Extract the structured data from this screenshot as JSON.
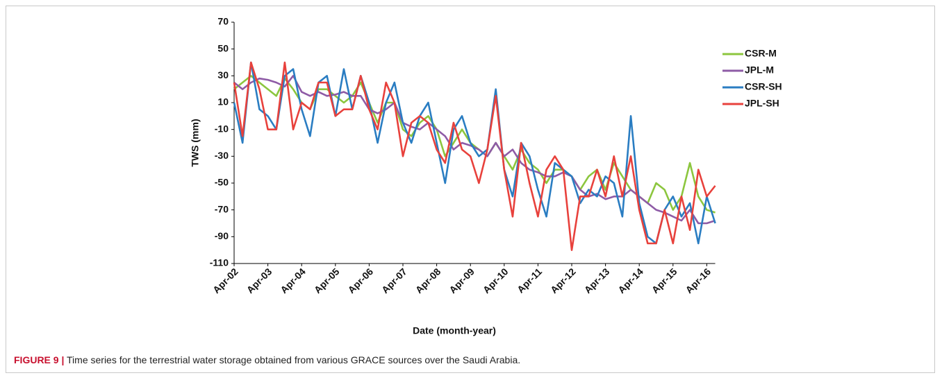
{
  "chart_data": {
    "type": "line",
    "y_label": "TWS (mm)",
    "x_label": "Date (month-year)",
    "categories": [
      "Apr-02",
      null,
      null,
      null,
      "Apr-03",
      null,
      null,
      null,
      "Apr-04",
      null,
      null,
      null,
      "Apr-05",
      null,
      null,
      null,
      "Apr-06",
      null,
      null,
      null,
      "Apr-07",
      null,
      null,
      null,
      "Apr-08",
      null,
      null,
      null,
      "Apr-09",
      null,
      null,
      null,
      "Apr-10",
      null,
      null,
      null,
      "Apr-11",
      null,
      null,
      null,
      "Apr-12",
      null,
      null,
      null,
      "Apr-13",
      null,
      null,
      null,
      "Apr-14",
      null,
      null,
      null,
      "Apr-15",
      null,
      null,
      null,
      "Apr-16",
      null
    ],
    "series": [
      {
        "name": "CSR-M",
        "color": "#8cc63e",
        "values": [
          20,
          25,
          30,
          25,
          20,
          15,
          28,
          20,
          10,
          5,
          20,
          20,
          15,
          10,
          15,
          25,
          10,
          -5,
          10,
          10,
          -10,
          -15,
          -5,
          0,
          -10,
          -30,
          -20,
          -10,
          -20,
          -25,
          -30,
          -20,
          -30,
          -40,
          -25,
          -35,
          -40,
          -50,
          -40,
          -40,
          -45,
          -55,
          -45,
          -40,
          -55,
          -35,
          -45,
          -55,
          -60,
          -65,
          -50,
          -55,
          -70,
          -60,
          -35,
          -60,
          -70,
          -72
        ]
      },
      {
        "name": "JPL-M",
        "color": "#8e5ba6",
        "values": [
          25,
          20,
          25,
          28,
          27,
          25,
          22,
          30,
          18,
          15,
          18,
          15,
          16,
          18,
          15,
          15,
          5,
          2,
          5,
          10,
          -5,
          -8,
          -10,
          -5,
          -10,
          -15,
          -25,
          -20,
          -22,
          -25,
          -30,
          -20,
          -30,
          -25,
          -35,
          -40,
          -42,
          -45,
          -45,
          -42,
          -45,
          -55,
          -60,
          -58,
          -62,
          -60,
          -60,
          -55,
          -60,
          -65,
          -70,
          -72,
          -75,
          -78,
          -70,
          -80,
          -80,
          -78
        ]
      },
      {
        "name": "CSR-SH",
        "color": "#2a7dc2",
        "values": [
          10,
          -20,
          40,
          5,
          0,
          -10,
          30,
          35,
          5,
          -15,
          25,
          30,
          0,
          35,
          5,
          30,
          10,
          -20,
          10,
          25,
          -5,
          -20,
          0,
          10,
          -20,
          -50,
          -10,
          0,
          -20,
          -30,
          -25,
          20,
          -40,
          -60,
          -20,
          -30,
          -55,
          -75,
          -35,
          -40,
          -45,
          -65,
          -55,
          -60,
          -45,
          -50,
          -75,
          0,
          -65,
          -90,
          -95,
          -70,
          -60,
          -75,
          -65,
          -95,
          -60,
          -80
        ]
      },
      {
        "name": "JPL-SH",
        "color": "#e8413c",
        "values": [
          25,
          -15,
          40,
          20,
          -10,
          -10,
          40,
          -10,
          10,
          5,
          25,
          25,
          0,
          5,
          5,
          30,
          5,
          -10,
          25,
          10,
          -30,
          -5,
          0,
          -5,
          -25,
          -35,
          -5,
          -25,
          -30,
          -50,
          -25,
          15,
          -40,
          -75,
          -20,
          -50,
          -75,
          -40,
          -30,
          -40,
          -100,
          -60,
          -60,
          -40,
          -60,
          -30,
          -60,
          -30,
          -70,
          -95,
          -95,
          -70,
          -95,
          -60,
          -85,
          -40,
          -60,
          -52
        ]
      }
    ],
    "ylim": [
      -110,
      70
    ],
    "yticks": [
      -110,
      -90,
      -70,
      -50,
      -30,
      -10,
      10,
      30,
      50,
      70
    ],
    "legend": "upper right",
    "grid": false
  },
  "caption": {
    "label": "FIGURE 9 |",
    "text": "Time series for the terrestrial water storage obtained from various GRACE sources over the Saudi Arabia."
  }
}
